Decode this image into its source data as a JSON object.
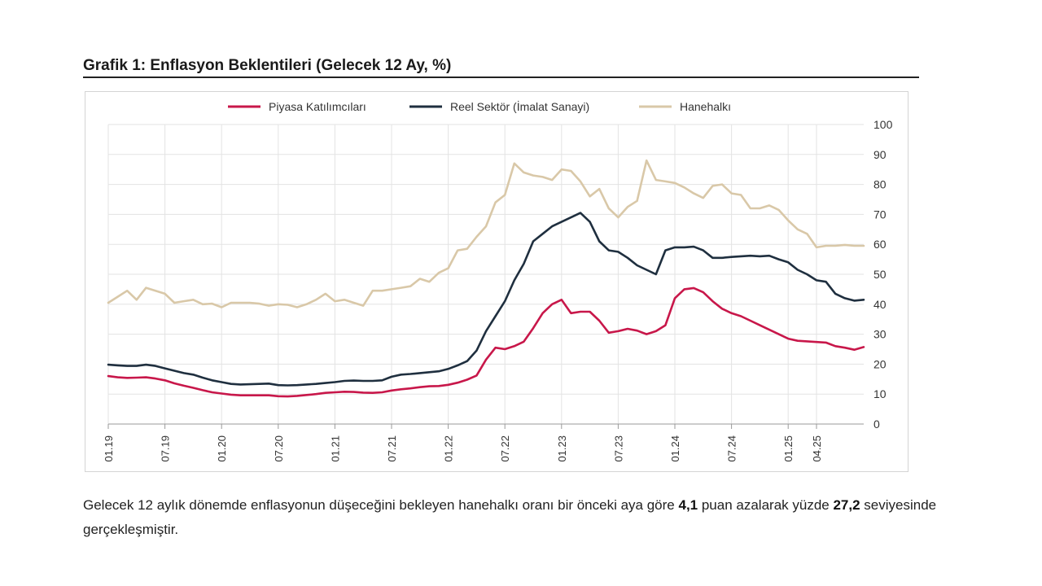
{
  "title": "Grafik 1: Enflasyon Beklentileri (Gelecek 12 Ay, %)",
  "caption": {
    "part1": "Gelecek 12 aylık dönemde enflasyonun düşeceğini bekleyen hanehalkı oranı bir önceki aya göre ",
    "bold1": "4,1",
    "part2": " puan azalarak yüzde ",
    "bold2": "27,2",
    "part3": " seviyesinde gerçekleşmiştir."
  },
  "colors": {
    "piyasa": "#c8174a",
    "reel": "#1f2f3f",
    "hane": "#d9c8a8",
    "grid": "#e3e3e3",
    "axis": "#9a9a9a"
  },
  "chart_data": {
    "type": "line",
    "title": "Grafik 1: Enflasyon Beklentileri (Gelecek 12 Ay, %)",
    "xlabel": "",
    "ylabel": "",
    "ylim": [
      0,
      100
    ],
    "yticks": [
      0,
      10,
      20,
      30,
      40,
      50,
      60,
      70,
      80,
      90,
      100
    ],
    "grid": true,
    "legend_position": "top",
    "x_ticks": [
      "01.19",
      "07.19",
      "01.20",
      "07.20",
      "01.21",
      "07.21",
      "01.22",
      "07.22",
      "01.23",
      "07.23",
      "01.24",
      "07.24",
      "01.25",
      "04.25"
    ],
    "x_range": [
      "01.19",
      "04.25"
    ],
    "series": [
      {
        "name": "Piyasa Katılımcıları",
        "color_key": "piyasa",
        "values": [
          16.0,
          15.6,
          15.4,
          15.5,
          15.6,
          15.2,
          14.6,
          13.6,
          12.8,
          12.1,
          11.3,
          10.6,
          10.2,
          9.8,
          9.6,
          9.6,
          9.6,
          9.6,
          9.3,
          9.2,
          9.4,
          9.7,
          10.0,
          10.4,
          10.6,
          10.8,
          10.7,
          10.5,
          10.4,
          10.6,
          11.2,
          11.6,
          11.9,
          12.3,
          12.6,
          12.7,
          13.1,
          13.8,
          14.8,
          16.2,
          21.5,
          25.5,
          25.0,
          26.0,
          27.5,
          32.0,
          37.0,
          40.0,
          41.5,
          37.0,
          37.5,
          37.5,
          34.5,
          30.5,
          31.0,
          31.8,
          31.2,
          30.0,
          31.0,
          33.0,
          42.0,
          45.0,
          45.4,
          44.0,
          41.0,
          38.5,
          37.0,
          36.0,
          34.5,
          33.0,
          31.5,
          30.0,
          28.5,
          27.8,
          27.6,
          27.4,
          27.2,
          26.0,
          25.5,
          24.8,
          25.7
        ]
      },
      {
        "name": "Reel Sektör (İmalat Sanayi)",
        "color_key": "reel",
        "values": [
          19.8,
          19.6,
          19.4,
          19.4,
          19.8,
          19.4,
          18.6,
          17.8,
          17.0,
          16.5,
          15.5,
          14.6,
          14.0,
          13.4,
          13.2,
          13.3,
          13.4,
          13.5,
          13.0,
          12.9,
          13.0,
          13.2,
          13.4,
          13.7,
          14.0,
          14.4,
          14.5,
          14.4,
          14.4,
          14.6,
          15.8,
          16.5,
          16.7,
          17.0,
          17.3,
          17.6,
          18.4,
          19.6,
          21.0,
          24.5,
          31.0,
          36.0,
          41.0,
          48.0,
          53.5,
          61.0,
          63.5,
          66.0,
          67.5,
          69.0,
          70.5,
          67.5,
          61.0,
          58.0,
          57.5,
          55.5,
          53.0,
          51.5,
          50.0,
          58.0,
          59.0,
          59.0,
          59.2,
          58.0,
          55.5,
          55.5,
          55.8,
          56.0,
          56.2,
          56.0,
          56.2,
          55.0,
          54.0,
          51.5,
          50.0,
          48.0,
          47.5,
          43.5,
          42.0,
          41.2,
          41.5
        ]
      },
      {
        "name": "Hanehalkı",
        "color_key": "hane",
        "values": [
          40.5,
          42.5,
          44.5,
          41.5,
          45.5,
          44.5,
          43.5,
          40.5,
          41.0,
          41.5,
          40.0,
          40.2,
          39.0,
          40.5,
          40.5,
          40.5,
          40.2,
          39.5,
          40.0,
          39.8,
          39.0,
          40.0,
          41.5,
          43.5,
          41.0,
          41.5,
          40.5,
          39.5,
          44.5,
          44.5,
          45.0,
          45.5,
          46.0,
          48.5,
          47.5,
          50.5,
          52.0,
          58.0,
          58.5,
          62.5,
          66.0,
          74.0,
          76.5,
          87.0,
          84.0,
          83.0,
          82.5,
          81.5,
          85.0,
          84.5,
          81.0,
          76.0,
          78.5,
          72.0,
          69.0,
          72.5,
          74.5,
          88.0,
          81.5,
          81.0,
          80.5,
          79.0,
          77.0,
          75.5,
          79.5,
          80.0,
          77.0,
          76.5,
          72.0,
          72.0,
          73.0,
          71.5,
          68.0,
          65.0,
          63.5,
          59.0,
          59.5,
          59.5,
          59.8,
          59.5,
          59.5
        ]
      }
    ]
  }
}
